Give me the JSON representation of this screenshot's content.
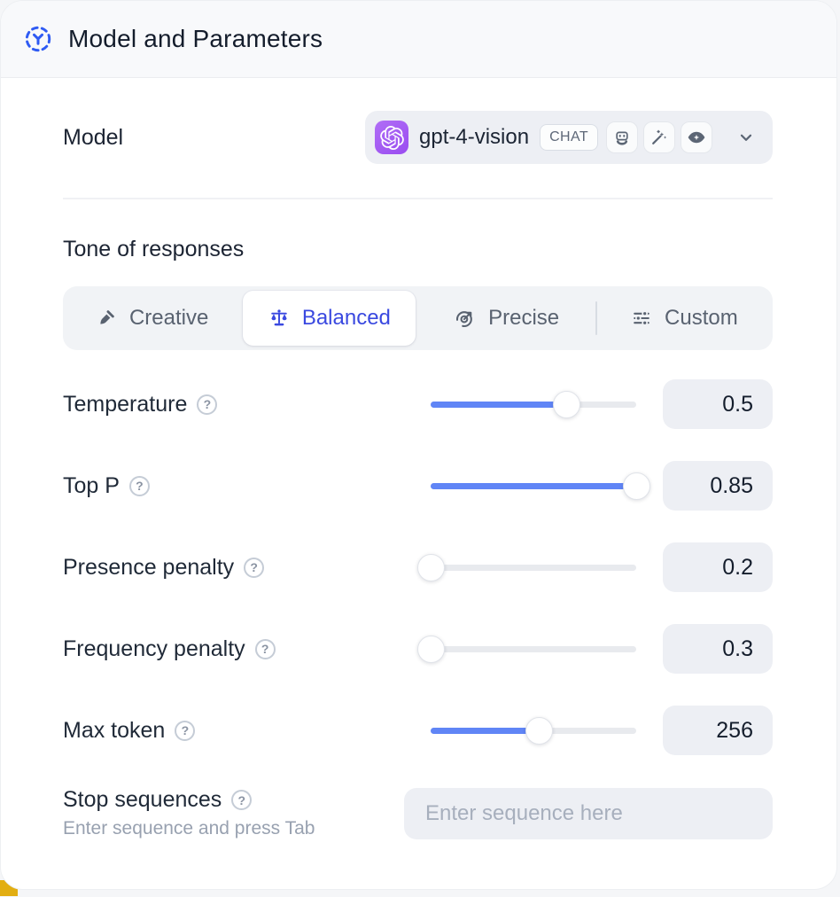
{
  "header": {
    "title": "Model and Parameters"
  },
  "model_row": {
    "label": "Model",
    "selected_model": "gpt-4-vision",
    "type_badge": "CHAT",
    "capability_icons": [
      "robot-icon",
      "magic-wand-icon",
      "vision-eye-icon"
    ]
  },
  "tone": {
    "title": "Tone of responses",
    "options": [
      {
        "label": "Creative",
        "icon": "brush-icon",
        "selected": false
      },
      {
        "label": "Balanced",
        "icon": "scale-icon",
        "selected": true
      },
      {
        "label": "Precise",
        "icon": "target-icon",
        "selected": false
      },
      {
        "label": "Custom",
        "icon": "sliders-icon",
        "selected": false
      }
    ]
  },
  "parameters": [
    {
      "name": "Temperature",
      "value": "0.5",
      "fill_pct": 66
    },
    {
      "name": "Top P",
      "value": "0.85",
      "fill_pct": 100
    },
    {
      "name": "Presence penalty",
      "value": "0.2",
      "fill_pct": 0
    },
    {
      "name": "Frequency penalty",
      "value": "0.3",
      "fill_pct": 0
    },
    {
      "name": "Max token",
      "value": "256",
      "fill_pct": 53
    }
  ],
  "stop_sequences": {
    "label": "Stop sequences",
    "helper": "Enter sequence and press Tab",
    "placeholder": "Enter sequence here",
    "current_value": ""
  },
  "colors": {
    "accent": "#3a49e0",
    "slider": "#6085f6",
    "model-badge": "#a45cf2",
    "header-icon": "#2f5bf3",
    "yellow-peek": "#e2ae12"
  }
}
